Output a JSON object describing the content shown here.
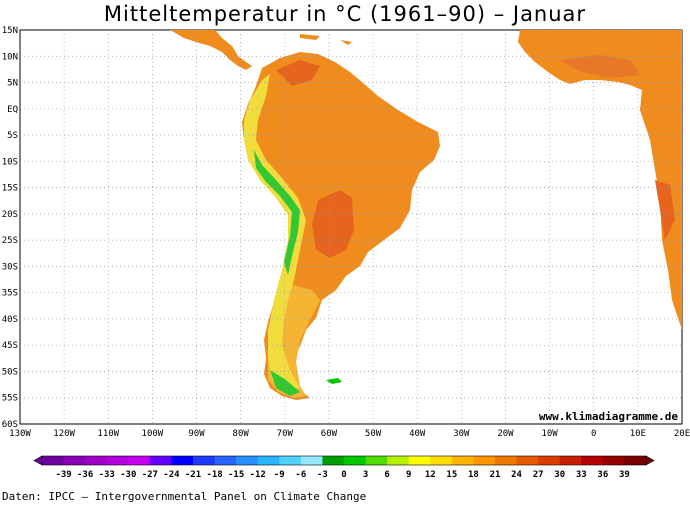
{
  "title": "Mitteltemperatur in °C (1961–90) – Januar",
  "watermark": "www.klimadiagramme.de",
  "source": "Daten: IPCC – Intergovernmental Panel on Climate Change",
  "lat_labels": [
    "15N",
    "10N",
    "5N",
    "EQ",
    "5S",
    "10S",
    "15S",
    "20S",
    "25S",
    "30S",
    "35S",
    "40S",
    "45S",
    "50S",
    "55S",
    "60S"
  ],
  "lon_labels": [
    "130W",
    "120W",
    "110W",
    "100W",
    "90W",
    "80W",
    "70W",
    "60W",
    "50W",
    "40W",
    "30W",
    "20W",
    "10W",
    "0",
    "10E",
    "20E"
  ],
  "colorbar": {
    "labels": [
      "-39",
      "-36",
      "-33",
      "-30",
      "-27",
      "-24",
      "-21",
      "-18",
      "-15",
      "-12",
      "-9",
      "-6",
      "-3",
      "0",
      "3",
      "6",
      "9",
      "12",
      "15",
      "18",
      "21",
      "24",
      "27",
      "30",
      "33",
      "36",
      "39"
    ],
    "colors": [
      "#6e00a0",
      "#8a00b4",
      "#a000c8",
      "#b400dc",
      "#c800f0",
      "#6400ff",
      "#0000ff",
      "#1e3cff",
      "#2864ff",
      "#2890ff",
      "#28b4ff",
      "#50d2ff",
      "#96e6ff",
      "#00a000",
      "#00c800",
      "#50dc00",
      "#b4f000",
      "#ffff00",
      "#ffdc00",
      "#ffb400",
      "#ff9600",
      "#f07800",
      "#e65a00",
      "#dc3c00",
      "#c81e00",
      "#b40000",
      "#960000",
      "#780000"
    ]
  },
  "colors": {
    "ocean": "#ffffff",
    "land_hot": "#f08c1e",
    "land_warm": "#f5a032",
    "land_very_hot": "#e6641e",
    "andes_cool": "#f0dc3c",
    "andes_cold": "#32c832",
    "grid": "#999999"
  }
}
